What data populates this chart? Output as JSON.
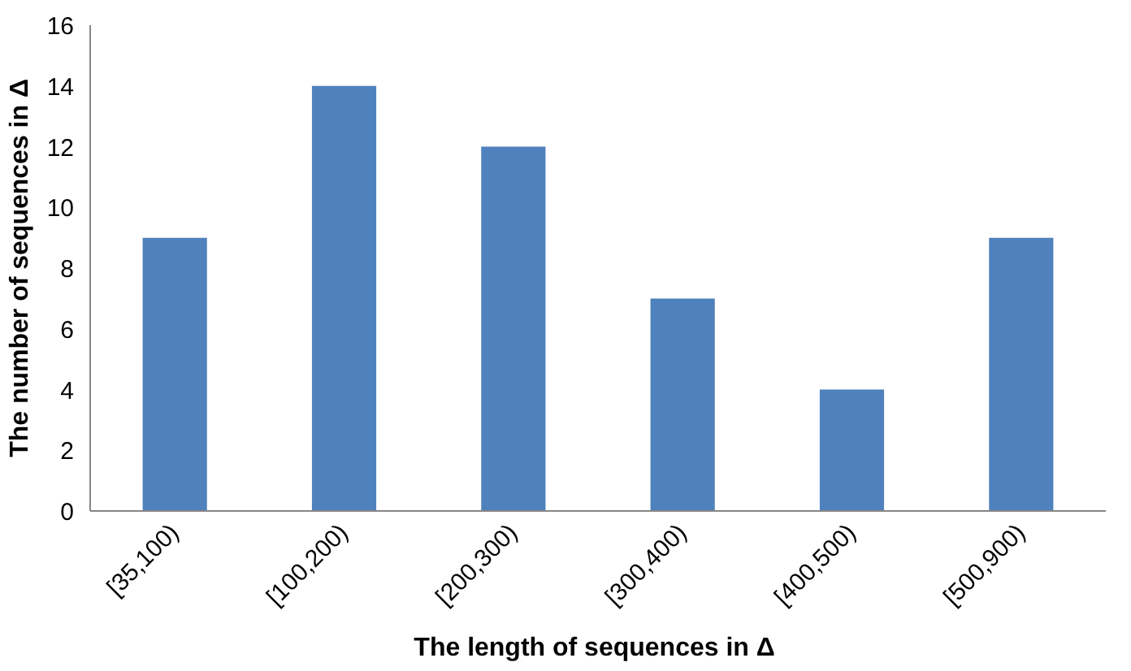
{
  "chart_data": {
    "type": "bar",
    "xlabel": "The length of  sequences in Δ",
    "ylabel": "The number of sequences in Δ",
    "categories": [
      "[35,100)",
      "[100,200)",
      "[200,300)",
      "[300,400)",
      "[400,500)",
      "[500,900)"
    ],
    "values": [
      9,
      14,
      12,
      7,
      4,
      9
    ],
    "color": "#4f81bd",
    "ylim": [
      0,
      16
    ],
    "yticks": [
      0,
      2,
      4,
      6,
      8,
      10,
      12,
      14,
      16
    ],
    "grid": false
  }
}
